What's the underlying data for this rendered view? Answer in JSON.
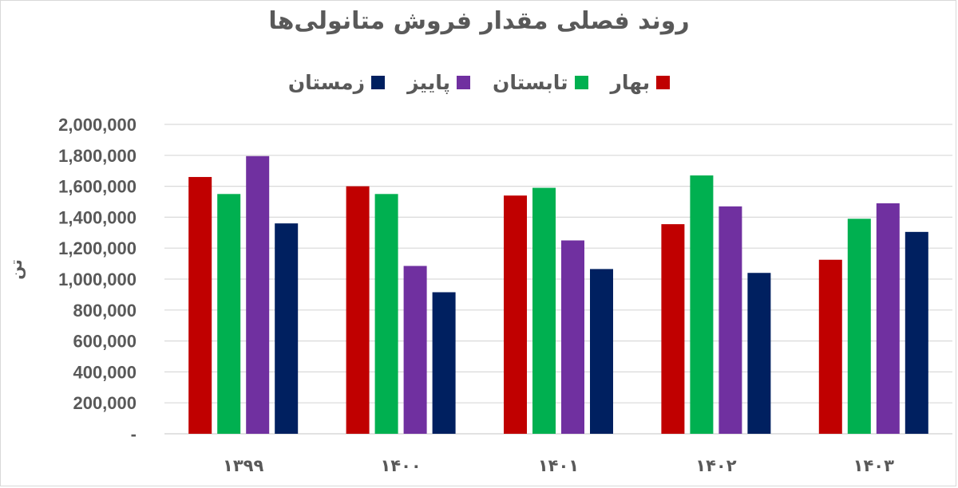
{
  "chart_data": {
    "type": "bar",
    "title": "روند فصلی مقدار فروش  متانولی‌ها",
    "ylabel": "تن",
    "xlabel": "",
    "categories": [
      "۱۳۹۹",
      "۱۴۰۰",
      "۱۴۰۱",
      "۱۴۰۲",
      "۱۴۰۳"
    ],
    "series": [
      {
        "name": "بهار",
        "color": "#C00000",
        "values": [
          1660000,
          1600000,
          1540000,
          1355000,
          1125000
        ]
      },
      {
        "name": "تابستان",
        "color": "#00B050",
        "values": [
          1550000,
          1550000,
          1590000,
          1670000,
          1390000
        ]
      },
      {
        "name": "پاییز",
        "color": "#7030A0",
        "values": [
          1795000,
          1085000,
          1250000,
          1470000,
          1490000
        ]
      },
      {
        "name": "زمستان",
        "color": "#002060",
        "values": [
          1360000,
          915000,
          1065000,
          1040000,
          1305000
        ]
      }
    ],
    "ylim": [
      0,
      2000000
    ],
    "yticks": [
      "-",
      "200,000",
      "400,000",
      "600,000",
      "800,000",
      "1,000,000",
      "1,200,000",
      "1,400,000",
      "1,600,000",
      "1,800,000",
      "2,000,000"
    ],
    "grid": true,
    "legend_position": "top"
  }
}
